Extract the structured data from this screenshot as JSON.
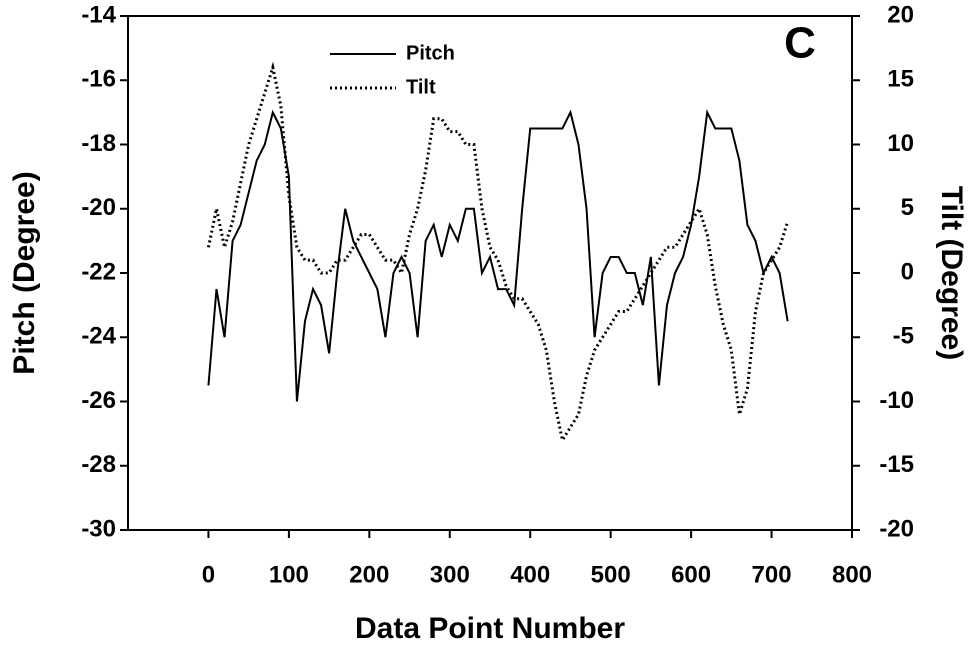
{
  "chart_data": {
    "type": "line",
    "annotation": "C",
    "xlabel": "Data Point Number",
    "ylabel": "Pitch (Degree)",
    "y2label": "Tilt (Degree)",
    "x": [
      0,
      10,
      20,
      30,
      40,
      50,
      60,
      70,
      80,
      90,
      100,
      110,
      120,
      130,
      140,
      150,
      160,
      170,
      180,
      190,
      200,
      210,
      220,
      230,
      240,
      250,
      260,
      270,
      280,
      290,
      300,
      310,
      320,
      330,
      340,
      350,
      360,
      370,
      380,
      390,
      400,
      410,
      420,
      430,
      440,
      450,
      460,
      470,
      480,
      490,
      500,
      510,
      520,
      530,
      540,
      550,
      560,
      570,
      580,
      590,
      600,
      610,
      620,
      630,
      640,
      650,
      660,
      670,
      680,
      690,
      700,
      710,
      720
    ],
    "series": [
      {
        "name": "Pitch",
        "color": "#000000",
        "linestyle": "solid",
        "axis": "y",
        "values": [
          -25.5,
          -22.5,
          -24,
          -21,
          -20.5,
          -19.5,
          -18.5,
          -18,
          -17,
          -17.5,
          -19,
          -26,
          -23.5,
          -22.5,
          -23,
          -24.5,
          -22,
          -20,
          -21,
          -21.5,
          -22,
          -22.5,
          -24,
          -22,
          -21.5,
          -22,
          -24,
          -21,
          -20.5,
          -21.5,
          -20.5,
          -21,
          -20,
          -20,
          -22,
          -21.5,
          -22.5,
          -22.5,
          -23,
          -20,
          -17.5,
          -17.5,
          -17.5,
          -17.5,
          -17.5,
          -17,
          -18,
          -20,
          -24,
          -22,
          -21.5,
          -21.5,
          -22,
          -22,
          -23,
          -21.5,
          -25.5,
          -23,
          -22,
          -21.5,
          -20.5,
          -19,
          -17,
          -17.5,
          -17.5,
          -17.5,
          -18.5,
          -20.5,
          -21,
          -22,
          -21.5,
          -22,
          -23.5
        ]
      },
      {
        "name": "Tilt",
        "color": "#000000",
        "linestyle": "dotted",
        "axis": "y2",
        "values": [
          2,
          5,
          2,
          4,
          7,
          10,
          12,
          14,
          16,
          13,
          6,
          2,
          1,
          1,
          0,
          0,
          1,
          1,
          2,
          3,
          3,
          2,
          1,
          1,
          0,
          3,
          5,
          8,
          12,
          12,
          11,
          11,
          10,
          10,
          5,
          2,
          1,
          -1,
          -2,
          -2,
          -3,
          -4,
          -6,
          -10,
          -13,
          -12,
          -11,
          -8,
          -6,
          -5,
          -4,
          -3,
          -3,
          -2,
          -1,
          0,
          1,
          2,
          2,
          3,
          4,
          5,
          3,
          -1,
          -4,
          -6,
          -11,
          -9,
          -3,
          0,
          1,
          2,
          4
        ]
      }
    ],
    "xlim": [
      -100,
      800
    ],
    "xticks": [
      0,
      100,
      200,
      300,
      400,
      500,
      600,
      700,
      800
    ],
    "ylim": [
      -30,
      -14
    ],
    "yticks": [
      -30,
      -28,
      -26,
      -24,
      -22,
      -20,
      -18,
      -16,
      -14
    ],
    "y2lim": [
      -20,
      20
    ],
    "y2ticks": [
      -20,
      -15,
      -10,
      -5,
      0,
      5,
      10,
      15,
      20
    ],
    "grid": false,
    "legend": "upper center"
  }
}
